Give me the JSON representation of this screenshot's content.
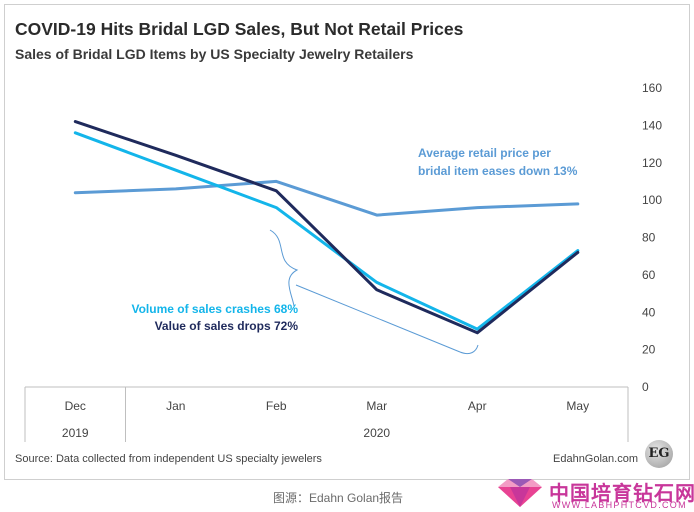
{
  "chart_data": {
    "type": "line",
    "title": "COVID-19 Hits Bridal LGD Sales, But Not Retail Prices",
    "subtitle": "Sales of Bridal LGD Items by US Specialty Jewelry Retailers",
    "x_groups": [
      {
        "label": "2019",
        "categories": [
          "Dec"
        ]
      },
      {
        "label": "2020",
        "categories": [
          "Jan",
          "Feb",
          "Mar",
          "Apr",
          "May"
        ]
      }
    ],
    "categories": [
      "Dec",
      "Jan",
      "Feb",
      "Mar",
      "Apr",
      "May"
    ],
    "ylim": [
      0,
      160
    ],
    "yticks": [
      0,
      20,
      40,
      60,
      80,
      100,
      120,
      140,
      160
    ],
    "y_axis_side": "right",
    "grid": false,
    "series": [
      {
        "values": [
          104,
          106,
          110,
          92,
          96,
          98
        ],
        "color": "#5b9bd5",
        "width": 3
      },
      {
        "values": [
          136,
          116,
          96,
          56,
          31,
          73
        ],
        "color": "#13b5ea",
        "width": 3
      },
      {
        "values": [
          142,
          124,
          105,
          52,
          29,
          72
        ],
        "color": "#1f2a5c",
        "width": 3
      }
    ],
    "annotations": {
      "price": [
        "Average retail price per",
        "bridal  item eases down 13%"
      ],
      "volume": "Volume of sales crashes 68%",
      "value": "Value of sales drops 72%"
    }
  },
  "source": "Source: Data collected from independent US specialty jewelers",
  "brand": "EdahnGolan.com",
  "brand_badge": "EG",
  "footer_caption": "图源：Edahn Golan报告",
  "watermark": {
    "chinese": "中国培育钻石网",
    "english": "WWW.LABHPHTCVD.COM",
    "logo_colors": [
      "#e84393",
      "#9b59b6",
      "#f39cc5"
    ]
  }
}
